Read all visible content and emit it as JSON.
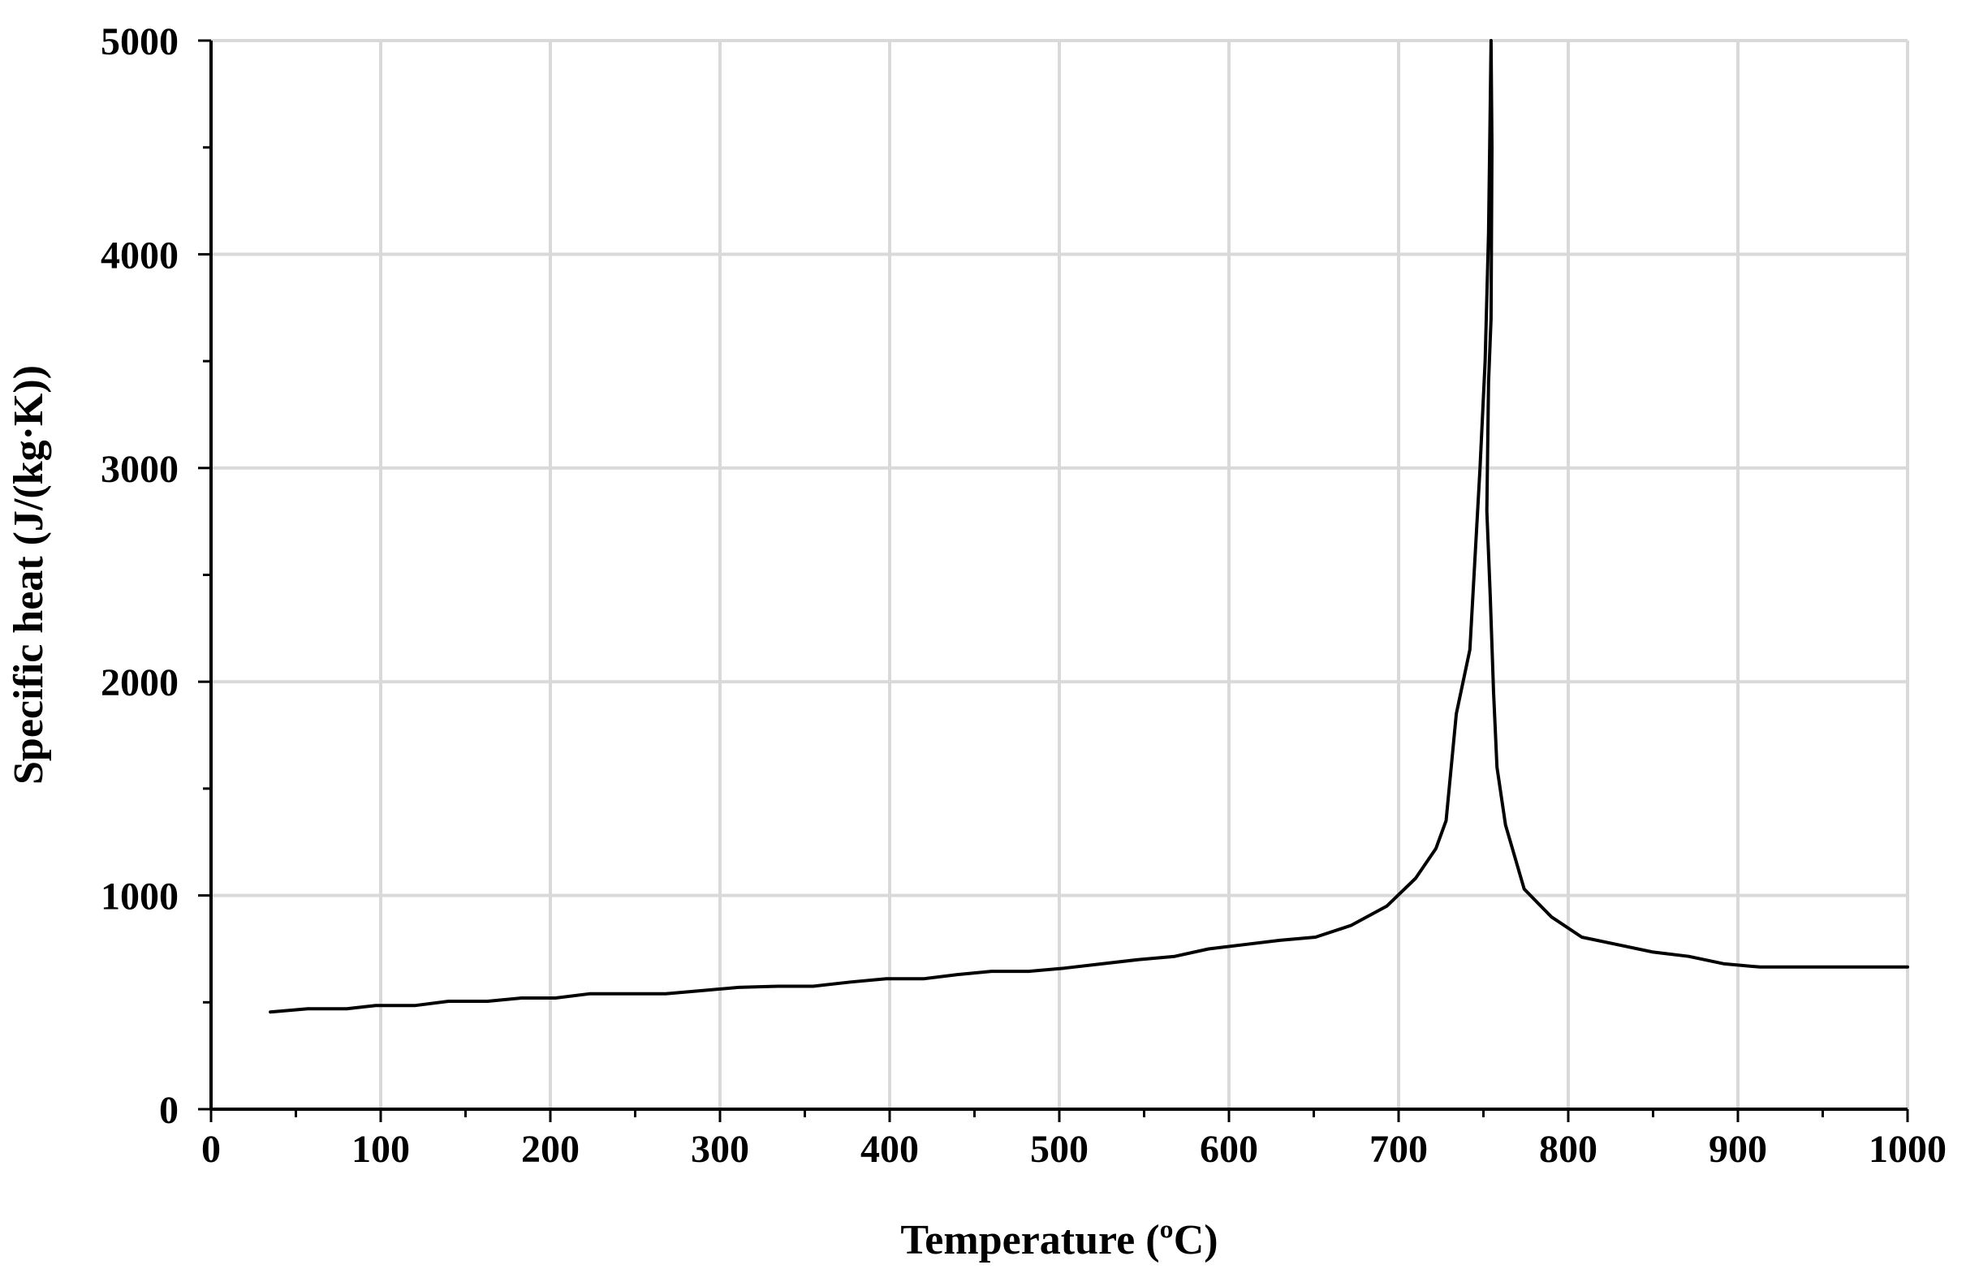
{
  "chart_data": {
    "type": "line",
    "title": "",
    "xlabel": "Temperature  (ºC)",
    "ylabel": "Specific heat (J/(kg·K))",
    "xlim": [
      0,
      1000
    ],
    "ylim": [
      0,
      5000
    ],
    "x_ticks": [
      0,
      100,
      200,
      300,
      400,
      500,
      600,
      700,
      800,
      900,
      1000
    ],
    "y_ticks": [
      0,
      1000,
      2000,
      3000,
      4000,
      5000
    ],
    "x_tick_labels": [
      "0",
      "100",
      "200",
      "300",
      "400",
      "500",
      "600",
      "700",
      "800",
      "900",
      "1000"
    ],
    "y_tick_labels": [
      "0",
      "1000",
      "2000",
      "3000",
      "4000",
      "5000"
    ],
    "grid": true,
    "legend": "none",
    "colors": {
      "line": "#000000",
      "grid": "#d9d9d9",
      "axis": "#000000"
    },
    "series": [
      {
        "x": [
          35,
          57,
          80,
          97,
          120,
          140,
          163,
          183,
          203,
          223,
          246,
          268,
          290,
          311,
          334,
          355,
          377,
          398,
          420,
          440,
          460,
          482,
          503,
          525,
          547,
          568,
          588,
          609,
          630,
          651,
          672,
          693,
          710,
          722,
          728,
          734,
          742,
          748,
          751,
          753,
          754,
          754.5,
          755,
          754.5,
          753,
          752,
          753,
          754,
          756,
          758,
          763,
          774,
          790,
          808,
          829,
          850,
          871,
          892,
          913,
          935,
          955,
          975,
          1000
        ],
        "y": [
          455,
          470,
          470,
          485,
          485,
          505,
          505,
          520,
          520,
          540,
          540,
          540,
          555,
          570,
          575,
          575,
          595,
          610,
          610,
          630,
          645,
          645,
          660,
          680,
          700,
          715,
          750,
          770,
          790,
          805,
          860,
          950,
          1080,
          1220,
          1350,
          1850,
          2150,
          3000,
          3500,
          4100,
          4700,
          5000,
          4500,
          3700,
          3400,
          2800,
          2600,
          2400,
          1950,
          1600,
          1330,
          1030,
          900,
          805,
          770,
          735,
          715,
          680,
          665,
          665,
          665,
          665,
          665
        ]
      }
    ]
  }
}
